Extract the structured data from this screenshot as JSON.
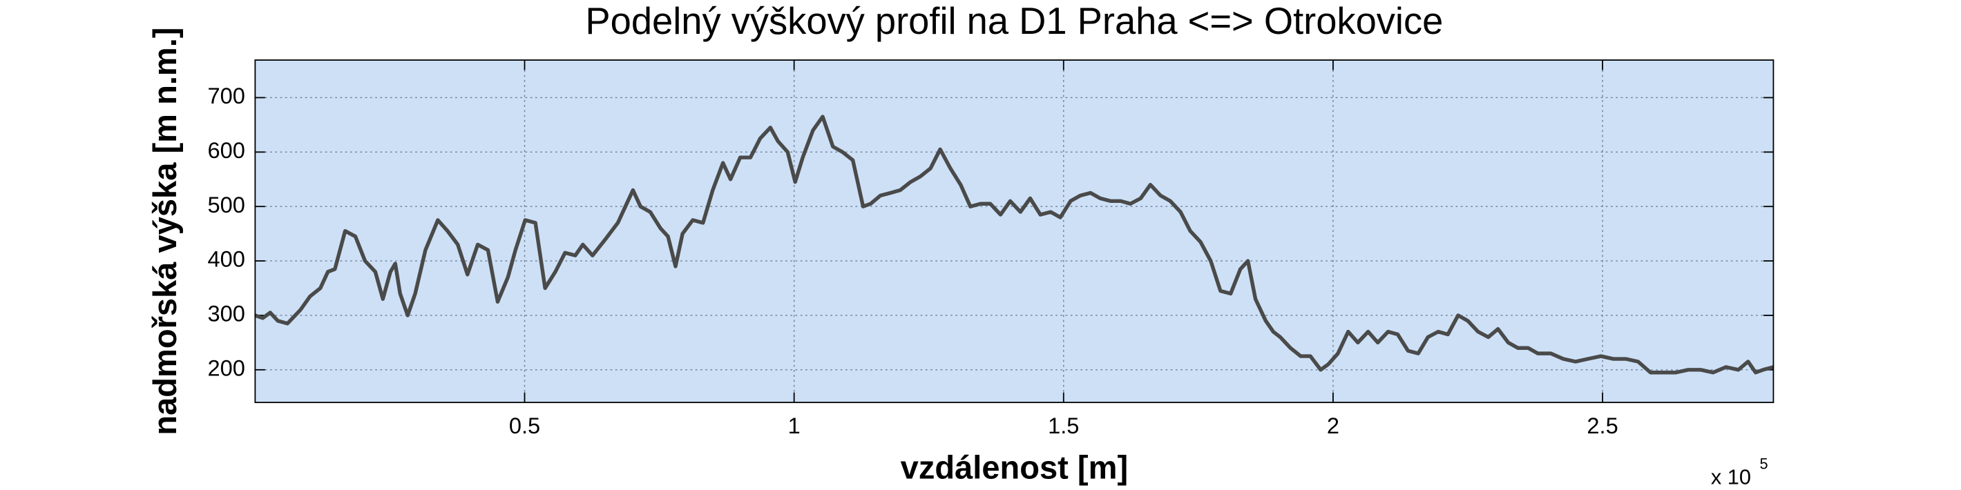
{
  "chart_data": {
    "type": "line",
    "title": "Podelný výškový profil na D1 Praha <=> Otrokovice",
    "x_label": "vzdálenost [m]",
    "y_label": "nadmořská výška [m n.m.]",
    "x_multiplier": "x 10",
    "x_multiplier_exponent": "5",
    "x": [
      0,
      1400,
      2800,
      4200,
      6000,
      8400,
      10200,
      12100,
      13500,
      14800,
      16700,
      18600,
      20400,
      22300,
      23700,
      25100,
      26000,
      26900,
      28300,
      29700,
      31600,
      33900,
      35700,
      37600,
      39400,
      41300,
      43200,
      45000,
      46900,
      48300,
      50100,
      52000,
      53800,
      55700,
      57500,
      59400,
      60800,
      62600,
      65000,
      67300,
      68700,
      70100,
      71500,
      73300,
      75200,
      76600,
      78000,
      79300,
      81200,
      83100,
      84900,
      86800,
      88200,
      90000,
      91900,
      93700,
      95600,
      97000,
      98800,
      100200,
      101600,
      103500,
      105300,
      107200,
      109000,
      110900,
      112800,
      114200,
      116000,
      117900,
      119700,
      121600,
      123400,
      125300,
      127100,
      129000,
      130900,
      132700,
      134600,
      136400,
      138300,
      140100,
      142000,
      143800,
      145700,
      147600,
      149400,
      151300,
      153100,
      155000,
      156800,
      158700,
      160600,
      162400,
      164300,
      166100,
      168000,
      169800,
      171700,
      173500,
      175400,
      177300,
      179100,
      181000,
      182800,
      184200,
      185600,
      187500,
      188900,
      190200,
      192100,
      194000,
      195800,
      197700,
      199100,
      200900,
      202800,
      204600,
      206500,
      208300,
      210200,
      212000,
      213900,
      215800,
      217600,
      219500,
      221300,
      223200,
      225000,
      226900,
      228800,
      230600,
      232500,
      234300,
      236200,
      238000,
      240400,
      242700,
      245000,
      247300,
      249700,
      252000,
      254300,
      256600,
      258900,
      261300,
      263600,
      265900,
      268200,
      270500,
      272900,
      275200,
      277000,
      278400,
      279800,
      281700
    ],
    "values": [
      300,
      295,
      305,
      290,
      285,
      310,
      335,
      350,
      380,
      385,
      455,
      445,
      400,
      380,
      330,
      380,
      395,
      340,
      300,
      340,
      420,
      475,
      455,
      430,
      375,
      430,
      420,
      325,
      370,
      420,
      475,
      470,
      350,
      380,
      415,
      410,
      430,
      410,
      440,
      470,
      500,
      530,
      500,
      490,
      460,
      445,
      390,
      450,
      475,
      470,
      530,
      580,
      550,
      590,
      590,
      625,
      645,
      620,
      600,
      545,
      590,
      640,
      665,
      610,
      600,
      585,
      500,
      505,
      520,
      525,
      530,
      545,
      555,
      570,
      605,
      570,
      540,
      500,
      505,
      505,
      485,
      510,
      490,
      515,
      485,
      490,
      480,
      510,
      520,
      525,
      515,
      510,
      510,
      505,
      515,
      540,
      520,
      510,
      490,
      455,
      435,
      400,
      345,
      340,
      385,
      400,
      330,
      290,
      270,
      260,
      240,
      225,
      225,
      200,
      210,
      230,
      270,
      250,
      270,
      250,
      270,
      265,
      235,
      230,
      260,
      270,
      265,
      300,
      290,
      270,
      260,
      275,
      250,
      240,
      240,
      230,
      230,
      220,
      215,
      220,
      225,
      220,
      220,
      215,
      195,
      195,
      195,
      200,
      200,
      195,
      205,
      200,
      215,
      195,
      200,
      205
    ],
    "color": "#4a4a4a",
    "background": "#cde0f6",
    "xlim": [
      0,
      281700
    ],
    "ylim": [
      140,
      769
    ],
    "xticks": [
      {
        "value": 50000,
        "label": "0.5"
      },
      {
        "value": 100000,
        "label": "1"
      },
      {
        "value": 150000,
        "label": "1.5"
      },
      {
        "value": 200000,
        "label": "2"
      },
      {
        "value": 250000,
        "label": "2.5"
      }
    ],
    "yticks": [
      200,
      300,
      400,
      500,
      600,
      700
    ],
    "grid": true
  }
}
